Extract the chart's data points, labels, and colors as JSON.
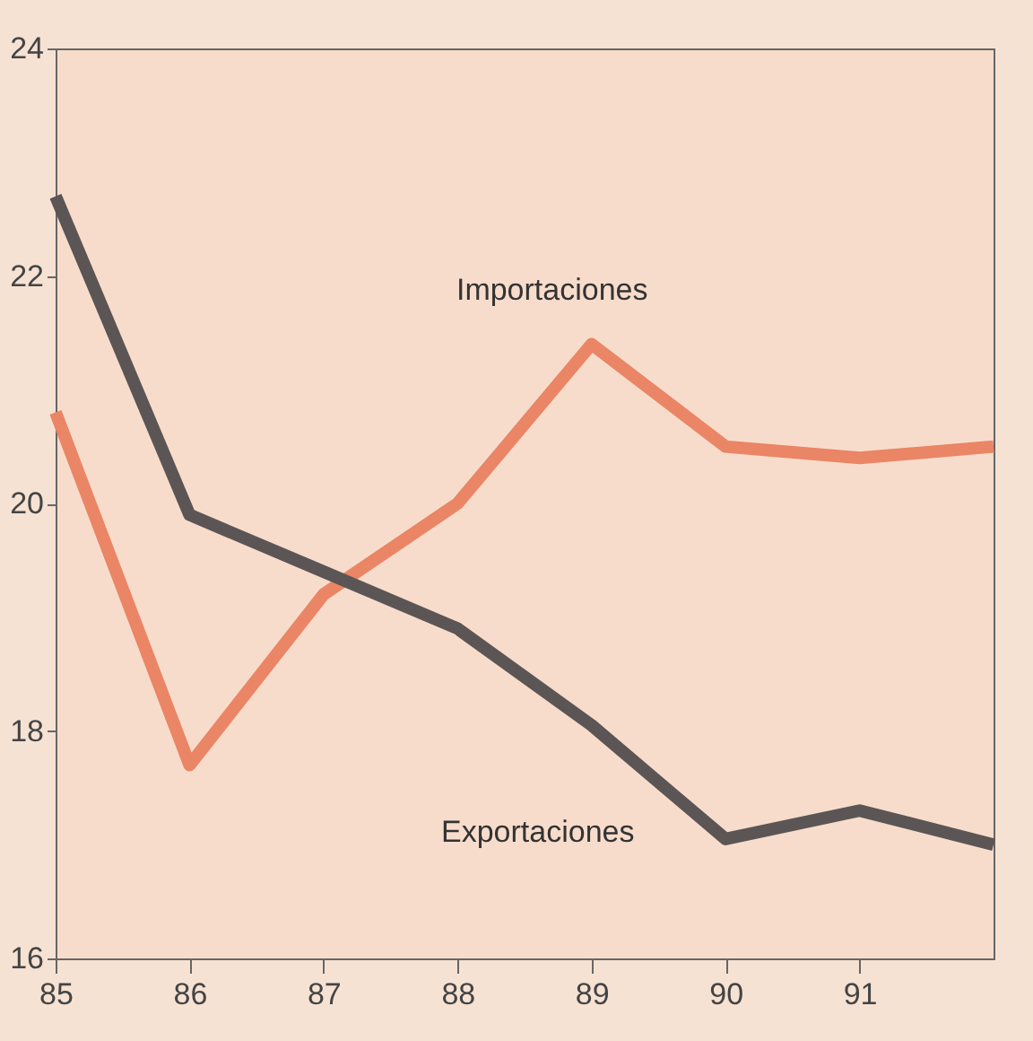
{
  "chart_data": {
    "type": "line",
    "x": [
      1985,
      1986,
      1987,
      1988,
      1989,
      1990,
      1991,
      1992
    ],
    "series": [
      {
        "name": "Importaciones",
        "color": "#ea8566",
        "values": [
          20.8,
          17.7,
          19.2,
          20.0,
          21.4,
          20.5,
          20.4,
          20.5
        ]
      },
      {
        "name": "Exportaciones",
        "color": "#5b5655",
        "values": [
          22.7,
          19.9,
          19.4,
          18.9,
          18.05,
          17.05,
          17.3,
          17.0
        ]
      }
    ],
    "xlim": [
      1985,
      1992
    ],
    "xticks": [
      {
        "value": 1985,
        "label": "85"
      },
      {
        "value": 1986,
        "label": "86"
      },
      {
        "value": 1987,
        "label": "87"
      },
      {
        "value": 1988,
        "label": "88"
      },
      {
        "value": 1989,
        "label": "89"
      },
      {
        "value": 1990,
        "label": "90"
      },
      {
        "value": 1991,
        "label": "91"
      }
    ],
    "ylim": [
      16,
      24
    ],
    "yticks": [
      16,
      18,
      20,
      22,
      24
    ],
    "grid": false,
    "marker": "none",
    "line_style": "solid"
  }
}
